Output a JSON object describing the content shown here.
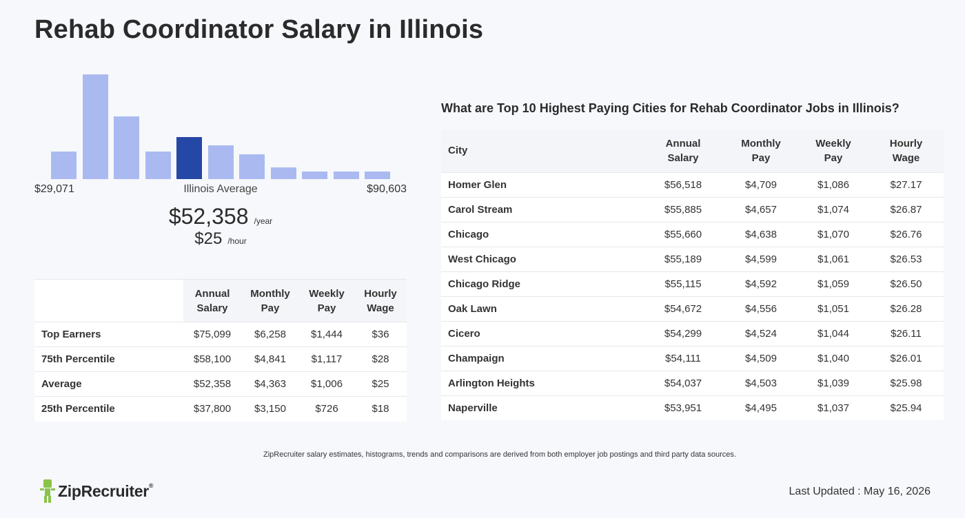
{
  "title": "Rehab Coordinator Salary in Illinois",
  "histogram": {
    "bars": [
      0.26,
      1.0,
      0.6,
      0.26,
      0.4,
      0.32,
      0.24,
      0.11,
      0.075,
      0.07,
      0.075
    ],
    "highlight_index": 4,
    "color": "#aabaf0",
    "highlight_color": "#2547a5",
    "min_label": "$29,071",
    "avg_label": "Illinois Average",
    "max_label": "$90,603"
  },
  "average": {
    "year_value": "$52,358",
    "year_unit": "/year",
    "hour_value": "$25",
    "hour_unit": "/hour"
  },
  "percentile_table": {
    "headers": [
      [
        "Annual",
        "Salary"
      ],
      [
        "Monthly",
        "Pay"
      ],
      [
        "Weekly",
        "Pay"
      ],
      [
        "Hourly",
        "Wage"
      ]
    ],
    "rows": [
      {
        "label": "Top Earners",
        "values": [
          "$75,099",
          "$6,258",
          "$1,444",
          "$36"
        ]
      },
      {
        "label": "75th Percentile",
        "values": [
          "$58,100",
          "$4,841",
          "$1,117",
          "$28"
        ]
      },
      {
        "label": "Average",
        "values": [
          "$52,358",
          "$4,363",
          "$1,006",
          "$25"
        ]
      },
      {
        "label": "25th Percentile",
        "values": [
          "$37,800",
          "$3,150",
          "$726",
          "$18"
        ]
      }
    ]
  },
  "cities": {
    "heading": "What are Top 10 Highest Paying Cities for Rehab Coordinator Jobs in Illinois?",
    "city_header": "City",
    "headers": [
      [
        "Annual",
        "Salary"
      ],
      [
        "Monthly",
        "Pay"
      ],
      [
        "Weekly",
        "Pay"
      ],
      [
        "Hourly",
        "Wage"
      ]
    ],
    "rows": [
      {
        "label": "Homer Glen",
        "values": [
          "$56,518",
          "$4,709",
          "$1,086",
          "$27.17"
        ]
      },
      {
        "label": "Carol Stream",
        "values": [
          "$55,885",
          "$4,657",
          "$1,074",
          "$26.87"
        ]
      },
      {
        "label": "Chicago",
        "values": [
          "$55,660",
          "$4,638",
          "$1,070",
          "$26.76"
        ]
      },
      {
        "label": "West Chicago",
        "values": [
          "$55,189",
          "$4,599",
          "$1,061",
          "$26.53"
        ]
      },
      {
        "label": "Chicago Ridge",
        "values": [
          "$55,115",
          "$4,592",
          "$1,059",
          "$26.50"
        ]
      },
      {
        "label": "Oak Lawn",
        "values": [
          "$54,672",
          "$4,556",
          "$1,051",
          "$26.28"
        ]
      },
      {
        "label": "Cicero",
        "values": [
          "$54,299",
          "$4,524",
          "$1,044",
          "$26.11"
        ]
      },
      {
        "label": "Champaign",
        "values": [
          "$54,111",
          "$4,509",
          "$1,040",
          "$26.01"
        ]
      },
      {
        "label": "Arlington Heights",
        "values": [
          "$54,037",
          "$4,503",
          "$1,039",
          "$25.98"
        ]
      },
      {
        "label": "Naperville",
        "values": [
          "$53,951",
          "$4,495",
          "$1,037",
          "$25.94"
        ]
      }
    ]
  },
  "footer": {
    "disclaimer": "ZipRecruiter salary estimates, histograms, trends and comparisons are derived from both employer job postings and third party data sources.",
    "logo_text": "ZipRecruiter",
    "logo_reg": "®",
    "logo_icon": "ziprecruiter-mascot-icon",
    "logo_color": "#8bc34a",
    "last_updated": "Last Updated : May 16, 2026"
  }
}
